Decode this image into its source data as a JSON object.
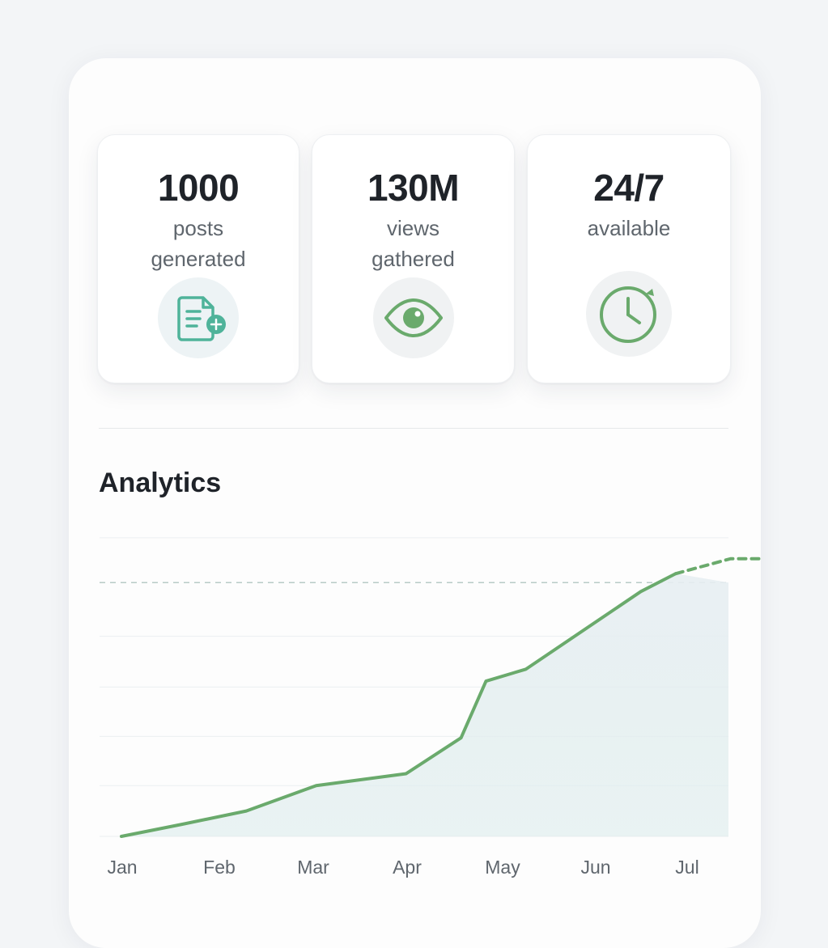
{
  "stats": [
    {
      "value": "1000",
      "label_line1": "posts",
      "label_line2": "generated",
      "icon": "document-add-icon"
    },
    {
      "value": "130M",
      "label_line1": "views",
      "label_line2": "gathered",
      "icon": "eye-icon"
    },
    {
      "value": "24/7",
      "label_line1": "available",
      "label_line2": "",
      "icon": "clock-icon"
    }
  ],
  "analytics": {
    "title": "Analytics"
  },
  "colors": {
    "accent": "#6aaa6c",
    "icon_teal": "#4fb39a",
    "icon_bg": "#eef2f4"
  },
  "chart_data": {
    "type": "line",
    "categories": [
      "Jan",
      "Feb",
      "Mar",
      "Apr",
      "May",
      "Jun",
      "Jul"
    ],
    "series": [
      {
        "solid": [
          [
            0.0,
            0
          ],
          [
            0.6,
            4
          ],
          [
            1.25,
            8.5
          ],
          [
            1.95,
            17
          ],
          [
            2.85,
            21
          ],
          [
            3.4,
            33
          ],
          [
            3.65,
            52
          ],
          [
            4.05,
            56
          ],
          [
            5.2,
            82
          ],
          [
            5.55,
            88
          ]
        ],
        "projected": [
          [
            5.55,
            88
          ],
          [
            6.1,
            93
          ],
          [
            6.4,
            93
          ]
        ]
      }
    ],
    "ylim": [
      0,
      100
    ],
    "target_line": 85,
    "grid": true,
    "legend": "none"
  }
}
